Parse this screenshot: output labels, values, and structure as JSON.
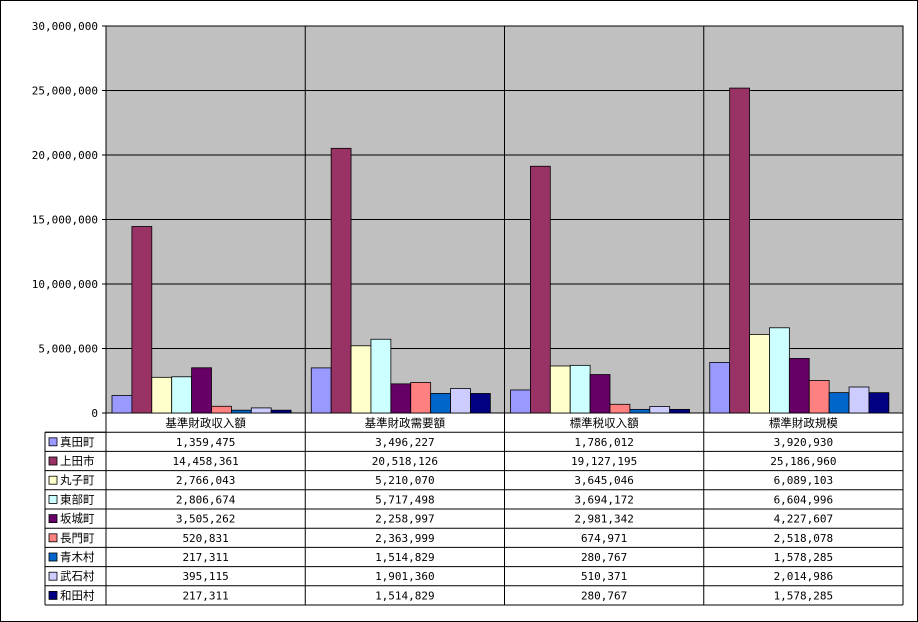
{
  "chart_data": {
    "type": "bar",
    "title": "",
    "xlabel": "",
    "ylabel": "",
    "ylim": [
      0,
      30000000
    ],
    "yticks": [
      "0",
      "5,000,000",
      "10,000,000",
      "15,000,000",
      "20,000,000",
      "25,000,000",
      "30,000,000"
    ],
    "ytick_values": [
      0,
      5000000,
      10000000,
      15000000,
      20000000,
      25000000,
      30000000
    ],
    "grid": true,
    "legend": "data-table-below",
    "plot_background": "#c0c0c0",
    "categories": [
      "基準財政収入額",
      "基準財政需要額",
      "標準税収入額",
      "標準財政規模"
    ],
    "series": [
      {
        "name": "真田町",
        "color": "#9999ff",
        "values": [
          1359475,
          3496227,
          1786012,
          3920930
        ],
        "labels": [
          "1,359,475",
          "3,496,227",
          "1,786,012",
          "3,920,930"
        ]
      },
      {
        "name": "上田市",
        "color": "#993366",
        "values": [
          14458361,
          20518126,
          19127195,
          25186960
        ],
        "labels": [
          "14,458,361",
          "20,518,126",
          "19,127,195",
          "25,186,960"
        ]
      },
      {
        "name": "丸子町",
        "color": "#ffffcc",
        "values": [
          2766043,
          5210070,
          3645046,
          6089103
        ],
        "labels": [
          "2,766,043",
          "5,210,070",
          "3,645,046",
          "6,089,103"
        ]
      },
      {
        "name": "東部町",
        "color": "#ccffff",
        "values": [
          2806674,
          5717498,
          3694172,
          6604996
        ],
        "labels": [
          "2,806,674",
          "5,717,498",
          "3,694,172",
          "6,604,996"
        ]
      },
      {
        "name": "坂城町",
        "color": "#660066",
        "values": [
          3505262,
          2258997,
          2981342,
          4227607
        ],
        "labels": [
          "3,505,262",
          "2,258,997",
          "2,981,342",
          "4,227,607"
        ]
      },
      {
        "name": "長門町",
        "color": "#ff8080",
        "values": [
          520831,
          2363999,
          674971,
          2518078
        ],
        "labels": [
          "520,831",
          "2,363,999",
          "674,971",
          "2,518,078"
        ]
      },
      {
        "name": "青木村",
        "color": "#0066cc",
        "values": [
          217311,
          1514829,
          280767,
          1578285
        ],
        "labels": [
          "217,311",
          "1,514,829",
          "280,767",
          "1,578,285"
        ]
      },
      {
        "name": "武石村",
        "color": "#ccccff",
        "values": [
          395115,
          1901360,
          510371,
          2014986
        ],
        "labels": [
          "395,115",
          "1,901,360",
          "510,371",
          "2,014,986"
        ]
      },
      {
        "name": "和田村",
        "color": "#000080",
        "values": [
          217311,
          1514829,
          280767,
          1578285
        ],
        "labels": [
          "217,311",
          "1,514,829",
          "280,767",
          "1,578,285"
        ]
      }
    ]
  }
}
